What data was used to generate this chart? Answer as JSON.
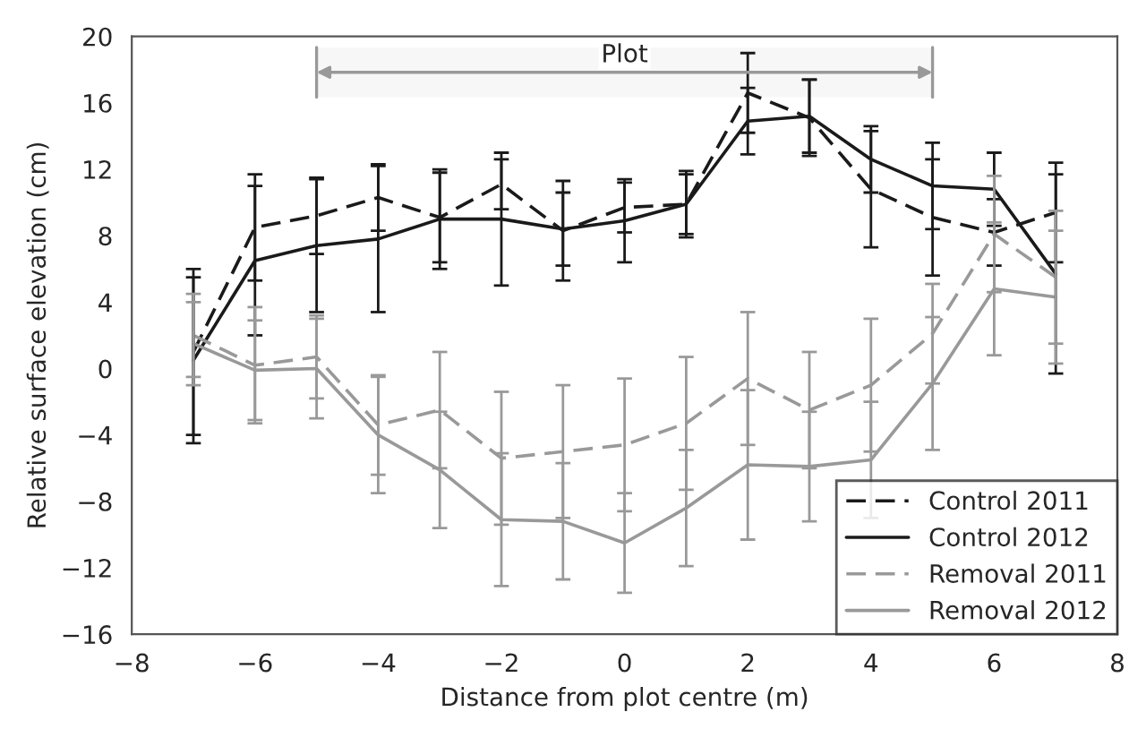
{
  "chart_data": {
    "type": "line",
    "xlabel": "Distance from plot centre (m)",
    "ylabel": "Relative surface elevation (cm)",
    "x": [
      -7,
      -6,
      -5,
      -4,
      -3,
      -2,
      -1,
      0,
      1,
      2,
      3,
      4,
      5,
      6,
      7
    ],
    "xlim": [
      -8,
      8
    ],
    "xticks": [
      {
        "value": -8,
        "label": "−8"
      },
      {
        "value": -6,
        "label": "−6"
      },
      {
        "value": -4,
        "label": "−4"
      },
      {
        "value": -2,
        "label": "−2"
      },
      0,
      2,
      4,
      6,
      8
    ],
    "ylim": [
      -16,
      20
    ],
    "yticks": [
      {
        "value": -16,
        "label": "−16"
      },
      {
        "value": -12,
        "label": "−12"
      },
      {
        "value": -8,
        "label": "−8"
      },
      {
        "value": -4,
        "label": "−4"
      },
      0,
      4,
      8,
      12,
      16,
      20
    ],
    "grid": false,
    "legend": "bottom right",
    "marker": "none",
    "series": [
      {
        "name": "Control 2011",
        "color": "#1a1a1a",
        "line_style": "dashed",
        "values": [
          1,
          8.5,
          9.2,
          10.3,
          9.1,
          11.1,
          8.3,
          9.7,
          9.9,
          16.6,
          15.1,
          10.8,
          9.1,
          8.2,
          9.4
        ],
        "errors": [
          5,
          3.2,
          2.3,
          2,
          2.7,
          1.5,
          3,
          1.5,
          2,
          2.4,
          2.3,
          3.5,
          3.5,
          2,
          3
        ]
      },
      {
        "name": "Control 2012",
        "color": "#1a1a1a",
        "line_style": "solid",
        "values": [
          0.5,
          6.5,
          7.4,
          7.8,
          9,
          9,
          8.4,
          8.9,
          9.9,
          14.9,
          15.2,
          12.6,
          11,
          10.8,
          5.7
        ],
        "errors": [
          5,
          4.5,
          4,
          4.4,
          3,
          4,
          2.2,
          2.5,
          1.8,
          2,
          2.2,
          2,
          2.6,
          2.2,
          6
        ]
      },
      {
        "name": "Removal 2011",
        "color": "#999999",
        "line_style": "dashed",
        "values": [
          2,
          0.2,
          0.7,
          -3.4,
          -2.5,
          -5.4,
          -5,
          -4.6,
          -3.3,
          -0.6,
          -2.5,
          -1,
          2.1,
          8.1,
          5.5
        ],
        "errors": [
          2.5,
          3.5,
          2.5,
          3,
          3.5,
          4,
          4,
          4,
          4,
          4,
          3.5,
          4,
          3,
          3.5,
          4
        ]
      },
      {
        "name": "Removal 2012",
        "color": "#999999",
        "line_style": "solid",
        "values": [
          1.5,
          -0.1,
          0,
          -4,
          -6.1,
          -9.1,
          -9.2,
          -10.5,
          -8.4,
          -5.8,
          -5.9,
          -5.5,
          -0.9,
          4.8,
          4.3
        ],
        "errors": [
          2.5,
          3,
          3,
          3.5,
          3.5,
          4,
          3.5,
          3,
          3.5,
          4.5,
          3.3,
          3.5,
          4,
          4,
          4
        ]
      }
    ],
    "bands": [
      {
        "axis": "x",
        "from": -5,
        "to": 5,
        "label": "Plot",
        "color": "#999999"
      }
    ]
  }
}
